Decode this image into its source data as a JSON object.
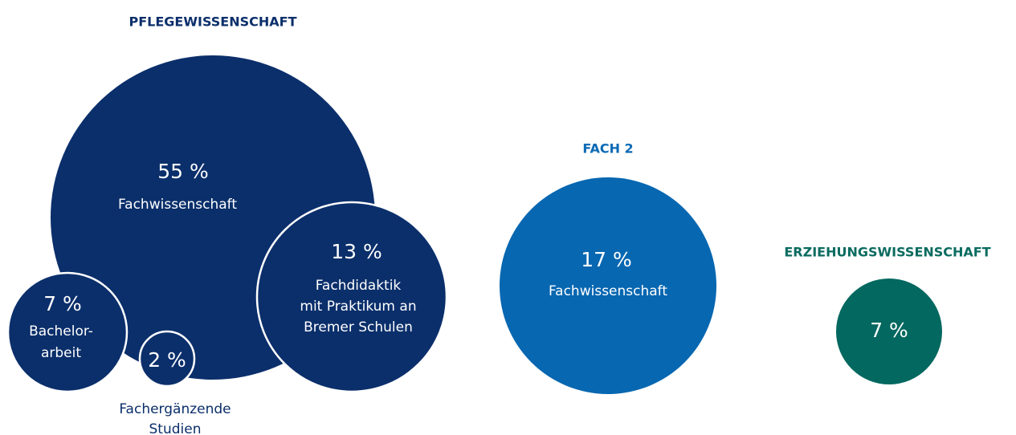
{
  "groups": [
    {
      "title": "PFLEGEWISSENSCHAFT",
      "bubbles": [
        {
          "value": "55 %",
          "label": [
            "Fachwissenschaft"
          ]
        },
        {
          "value": "13 %",
          "label": [
            "Fachdidaktik",
            "mit Praktikum an",
            "Bremer Schulen"
          ]
        },
        {
          "value": "7 %",
          "label": [
            "Bachelor-",
            "arbeit"
          ]
        },
        {
          "value": "2 %",
          "label": [
            "Fachergänzende",
            "Studien"
          ]
        }
      ]
    },
    {
      "title": "FACH 2",
      "bubbles": [
        {
          "value": "17 %",
          "label": [
            "Fachwissenschaft"
          ]
        }
      ]
    },
    {
      "title": "ERZIEHUNGSWISSENSCHAFT",
      "bubbles": [
        {
          "value": "7 %",
          "label": []
        }
      ]
    }
  ]
}
